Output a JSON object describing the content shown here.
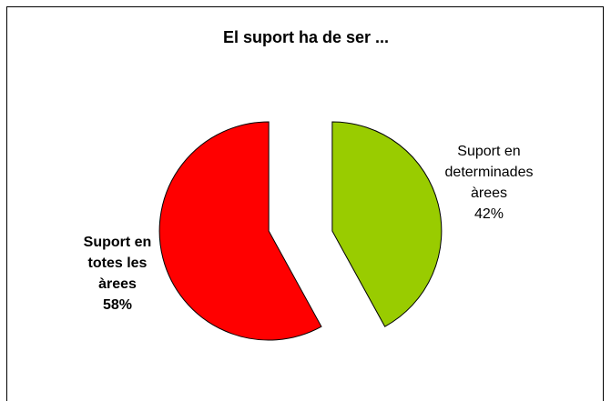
{
  "chart_data": {
    "type": "pie",
    "title": "El suport ha de ser ...",
    "slices": [
      {
        "label_lines": [
          "Suport en",
          "determinades",
          "àrees",
          "42%"
        ],
        "value": 42,
        "color": "#99CC00",
        "exploded": true,
        "label_bold": false
      },
      {
        "label_lines": [
          "Suport en",
          "totes les",
          "àrees",
          "58%"
        ],
        "value": 58,
        "color": "#FF0000",
        "exploded": true,
        "label_bold": true
      }
    ],
    "legend": "none"
  }
}
